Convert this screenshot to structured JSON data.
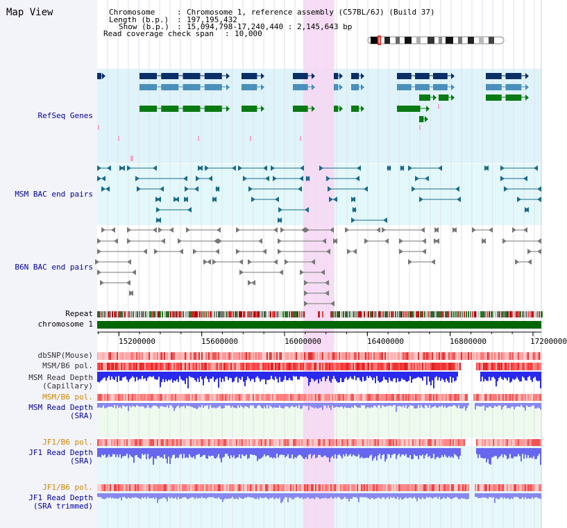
{
  "page": {
    "title": "Map View"
  },
  "info": {
    "chromosome_label": "Chromosome",
    "chromosome_value": "Chromosome 1, reference assembly (C57BL/6J) (Build 37)",
    "length_label": "Length (b.p.)",
    "length_value": "197,195,432",
    "show_label": "Show (b.p.)",
    "show_value": "15,094,798-17,240,440 : 2,145,643 bp",
    "coverage_label": "Read coverage check span",
    "coverage_value": "10,000"
  },
  "tracks": {
    "refseq": "RefSeq Genes",
    "msm_bac": "MSM BAC end pairs",
    "b6n_bac": "B6N BAC end pairs",
    "repeat": "Repeat",
    "chromosome": "chromosome 1",
    "dbsnp": "dbSNP(Mouse)",
    "msm_b6_pol": "MSM/B6 pol.",
    "msm_depth_cap_1": "MSM Read Depth",
    "msm_depth_cap_2": "(Capillary)",
    "msm_b6_pol_2": "MSM/B6 pol.",
    "msm_depth_sra_1": "MSM Read Depth",
    "msm_depth_sra_2": "(SRA)",
    "jf1_b6_pol": "JF1/B6 pol.",
    "jf1_depth_sra_1": "JF1 Read Depth",
    "jf1_depth_sra_2": "(SRA)",
    "jf1_b6_pol_2": "JF1/B6 pol.",
    "jf1_depth_trim_1": "JF1 Read Depth",
    "jf1_depth_trim_2": "(SRA trimmed)"
  },
  "axis": {
    "start": 15094798,
    "end": 17240440,
    "tick_labels": [
      "15200000",
      "15600000",
      "16000000",
      "16400000",
      "16800000",
      "17200000"
    ],
    "tick_values": [
      15200000,
      15600000,
      16000000,
      16400000,
      16800000,
      17200000
    ]
  },
  "highlight": {
    "start": 16090000,
    "end": 16240000
  },
  "colors": {
    "refseq_bg": "#dff3fa",
    "msm_bg": "#e3f8fb",
    "gene_dark": "#0a2f66",
    "gene_mid": "#4a90bb",
    "gene_green": "#0a7a12",
    "bac_msm": "#1a6a8a",
    "bac_b6n": "#777777",
    "highlight": "#f5d8f3",
    "chromosome": "#006600",
    "depth_blue": "#2a2aee",
    "depth_light": "#8888f0",
    "label_blue": "#000099",
    "label_orange": "#cc8800"
  },
  "chromosome_ideogram": {
    "icon": "chromosome-ideogram-icon"
  }
}
